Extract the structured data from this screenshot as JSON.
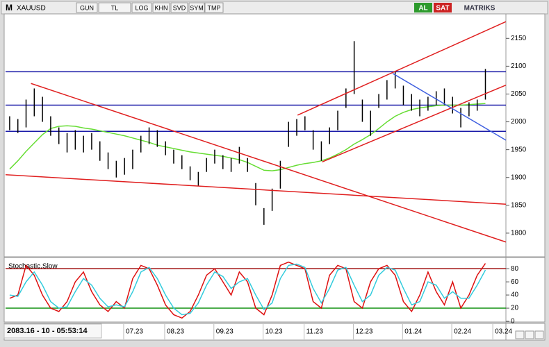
{
  "toolbar": {
    "prefix": "M",
    "symbol": "XAUUSD",
    "buttons": [
      "GUN",
      "TL",
      "LOG",
      "KHN",
      "SVD",
      "SYM",
      "TMP"
    ],
    "actions": [
      "AL",
      "SAT"
    ],
    "brand": "MATRIKS"
  },
  "status": "2083.16 - 10 - 05:53:14",
  "chart_data": [
    {
      "type": "hlbar",
      "categories": [
        null,
        null,
        null,
        null,
        null,
        null,
        null,
        null,
        null,
        null,
        null,
        null,
        null,
        null,
        null,
        "07.23",
        null,
        null,
        null,
        null,
        "08.23",
        null,
        null,
        null,
        null,
        null,
        "09.23",
        null,
        null,
        null,
        null,
        null,
        "10.23",
        null,
        null,
        null,
        null,
        "11.23",
        null,
        null,
        null,
        null,
        null,
        "12.23",
        null,
        null,
        null,
        null,
        null,
        "01.24",
        null,
        null,
        null,
        null,
        null,
        "02.24",
        null,
        null,
        null,
        null,
        "03.24"
      ],
      "high": [
        2010,
        2005,
        2040,
        2060,
        2045,
        2010,
        1990,
        1980,
        1985,
        1975,
        1980,
        1965,
        1945,
        1930,
        1935,
        1950,
        1975,
        1990,
        1985,
        1965,
        1950,
        1940,
        1920,
        1910,
        1935,
        1950,
        1940,
        1935,
        1955,
        1935,
        1890,
        1845,
        1880,
        1930,
        2000,
        2005,
        2010,
        1985,
        1965,
        1990,
        2020,
        2060,
        2145,
        2040,
        2020,
        2050,
        2075,
        2090,
        2065,
        2050,
        2040,
        2045,
        2055,
        2060,
        2045,
        2025,
        2035,
        2040,
        2095,
        null,
        null
      ],
      "low": [
        1985,
        1980,
        1990,
        2010,
        2000,
        1975,
        1960,
        1945,
        1950,
        1945,
        1950,
        1930,
        1915,
        1900,
        1905,
        1915,
        1945,
        1960,
        1955,
        1940,
        1925,
        1915,
        1895,
        1885,
        1910,
        1925,
        1915,
        1910,
        1925,
        1910,
        1850,
        1815,
        1840,
        1880,
        1955,
        1975,
        1985,
        1950,
        1930,
        1960,
        1985,
        2025,
        2050,
        2000,
        1975,
        2025,
        2040,
        2060,
        2030,
        2020,
        2010,
        2020,
        2030,
        2030,
        2015,
        1990,
        2010,
        2020,
        2040,
        null,
        null
      ],
      "ma": {
        "color": "#66dd33",
        "values": [
          1915,
          1930,
          1947,
          1962,
          1977,
          1988,
          1992,
          1993,
          1992,
          1989,
          1987,
          1984,
          1981,
          1978,
          1975,
          1971,
          1967,
          1963,
          1958,
          1955,
          1952,
          1949,
          1946,
          1944,
          1942,
          1940,
          1938,
          1935,
          1932,
          1927,
          1920,
          1913,
          1912,
          1914,
          1918,
          1922,
          1925,
          1927,
          1930,
          1935,
          1942,
          1950,
          1960,
          1968,
          1977,
          1988,
          2000,
          2010,
          2017,
          2022,
          2025,
          2027,
          2029,
          2030,
          2030,
          2030,
          2031,
          2032,
          2033,
          null,
          null
        ]
      },
      "color": "#000000",
      "ylim": [
        1760,
        2194
      ],
      "yticks": [
        1800,
        1850,
        1900,
        1950,
        2000,
        2050,
        2100,
        2150
      ],
      "xlim": [
        -0.5,
        60.5
      ],
      "hlines": [
        {
          "value": 2090,
          "color": "#1a1aa8"
        },
        {
          "value": 2030,
          "color": "#1a1aa8"
        },
        {
          "value": 1983,
          "color": "#1a1aa8"
        }
      ],
      "trend_lines": [
        {
          "x": [
            2.6,
            60.5
          ],
          "values": [
            2069,
            1784
          ],
          "color": "#e02020"
        },
        {
          "x": [
            -0.5,
            60.5
          ],
          "values": [
            1905,
            1852
          ],
          "color": "#e02020"
        },
        {
          "x": [
            35.1,
            60.5
          ],
          "values": [
            2012,
            2180
          ],
          "color": "#e02020"
        },
        {
          "x": [
            38.1,
            60.5
          ],
          "values": [
            1928,
            2066
          ],
          "color": "#e02020"
        },
        {
          "x": [
            46.7,
            60.5
          ],
          "values": [
            2087,
            1967
          ],
          "color": "#4060e0"
        }
      ]
    },
    {
      "type": "line",
      "title": "Stochastic,Slow",
      "series": [
        {
          "color": "#dd1010",
          "values": [
            35,
            40,
            85,
            70,
            40,
            20,
            15,
            30,
            60,
            75,
            45,
            25,
            15,
            30,
            20,
            65,
            85,
            80,
            55,
            25,
            10,
            5,
            15,
            40,
            70,
            80,
            60,
            40,
            75,
            60,
            20,
            10,
            40,
            85,
            90,
            85,
            80,
            30,
            20,
            70,
            85,
            80,
            30,
            20,
            60,
            80,
            85,
            70,
            30,
            15,
            40,
            75,
            45,
            25,
            60,
            20,
            40,
            70,
            88,
            null,
            null
          ]
        },
        {
          "color": "#33ccdd",
          "values": [
            40,
            38,
            60,
            75,
            55,
            30,
            20,
            22,
            45,
            65,
            55,
            35,
            22,
            25,
            22,
            45,
            75,
            82,
            65,
            40,
            20,
            10,
            12,
            28,
            55,
            75,
            68,
            50,
            60,
            65,
            40,
            18,
            28,
            65,
            85,
            87,
            82,
            50,
            28,
            50,
            78,
            82,
            55,
            30,
            40,
            70,
            82,
            78,
            50,
            25,
            30,
            60,
            55,
            35,
            45,
            35,
            35,
            55,
            78,
            null,
            null
          ]
        }
      ],
      "ylim": [
        0,
        96
      ],
      "yticks": [
        0,
        20,
        40,
        60,
        80
      ],
      "hlines": [
        {
          "value": 80,
          "color": "#a01010"
        },
        {
          "value": 20,
          "color": "#109010"
        }
      ]
    }
  ]
}
